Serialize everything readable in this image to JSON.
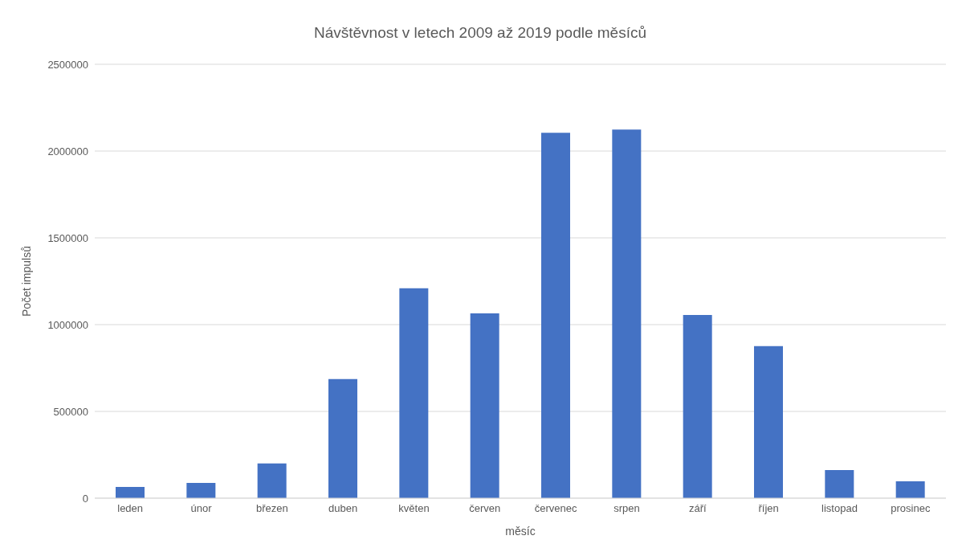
{
  "chart_data": {
    "type": "bar",
    "title": "Návštěvnost v letech 2009 až 2019 podle měsíců",
    "xlabel": "měsíc",
    "ylabel": "Počet impulsů",
    "categories": [
      "leden",
      "únor",
      "březen",
      "duben",
      "květen",
      "červen",
      "červenec",
      "srpen",
      "září",
      "říjen",
      "listopad",
      "prosinec"
    ],
    "values": [
      65000,
      88000,
      200000,
      686000,
      1210000,
      1065000,
      2105000,
      2124000,
      1055000,
      876000,
      162000,
      97000
    ],
    "color": "#4472c4",
    "ylim": [
      0,
      2500000
    ],
    "yticks": [
      0,
      500000,
      1000000,
      1500000,
      2000000,
      2500000
    ],
    "grid": "y",
    "legend": false
  }
}
